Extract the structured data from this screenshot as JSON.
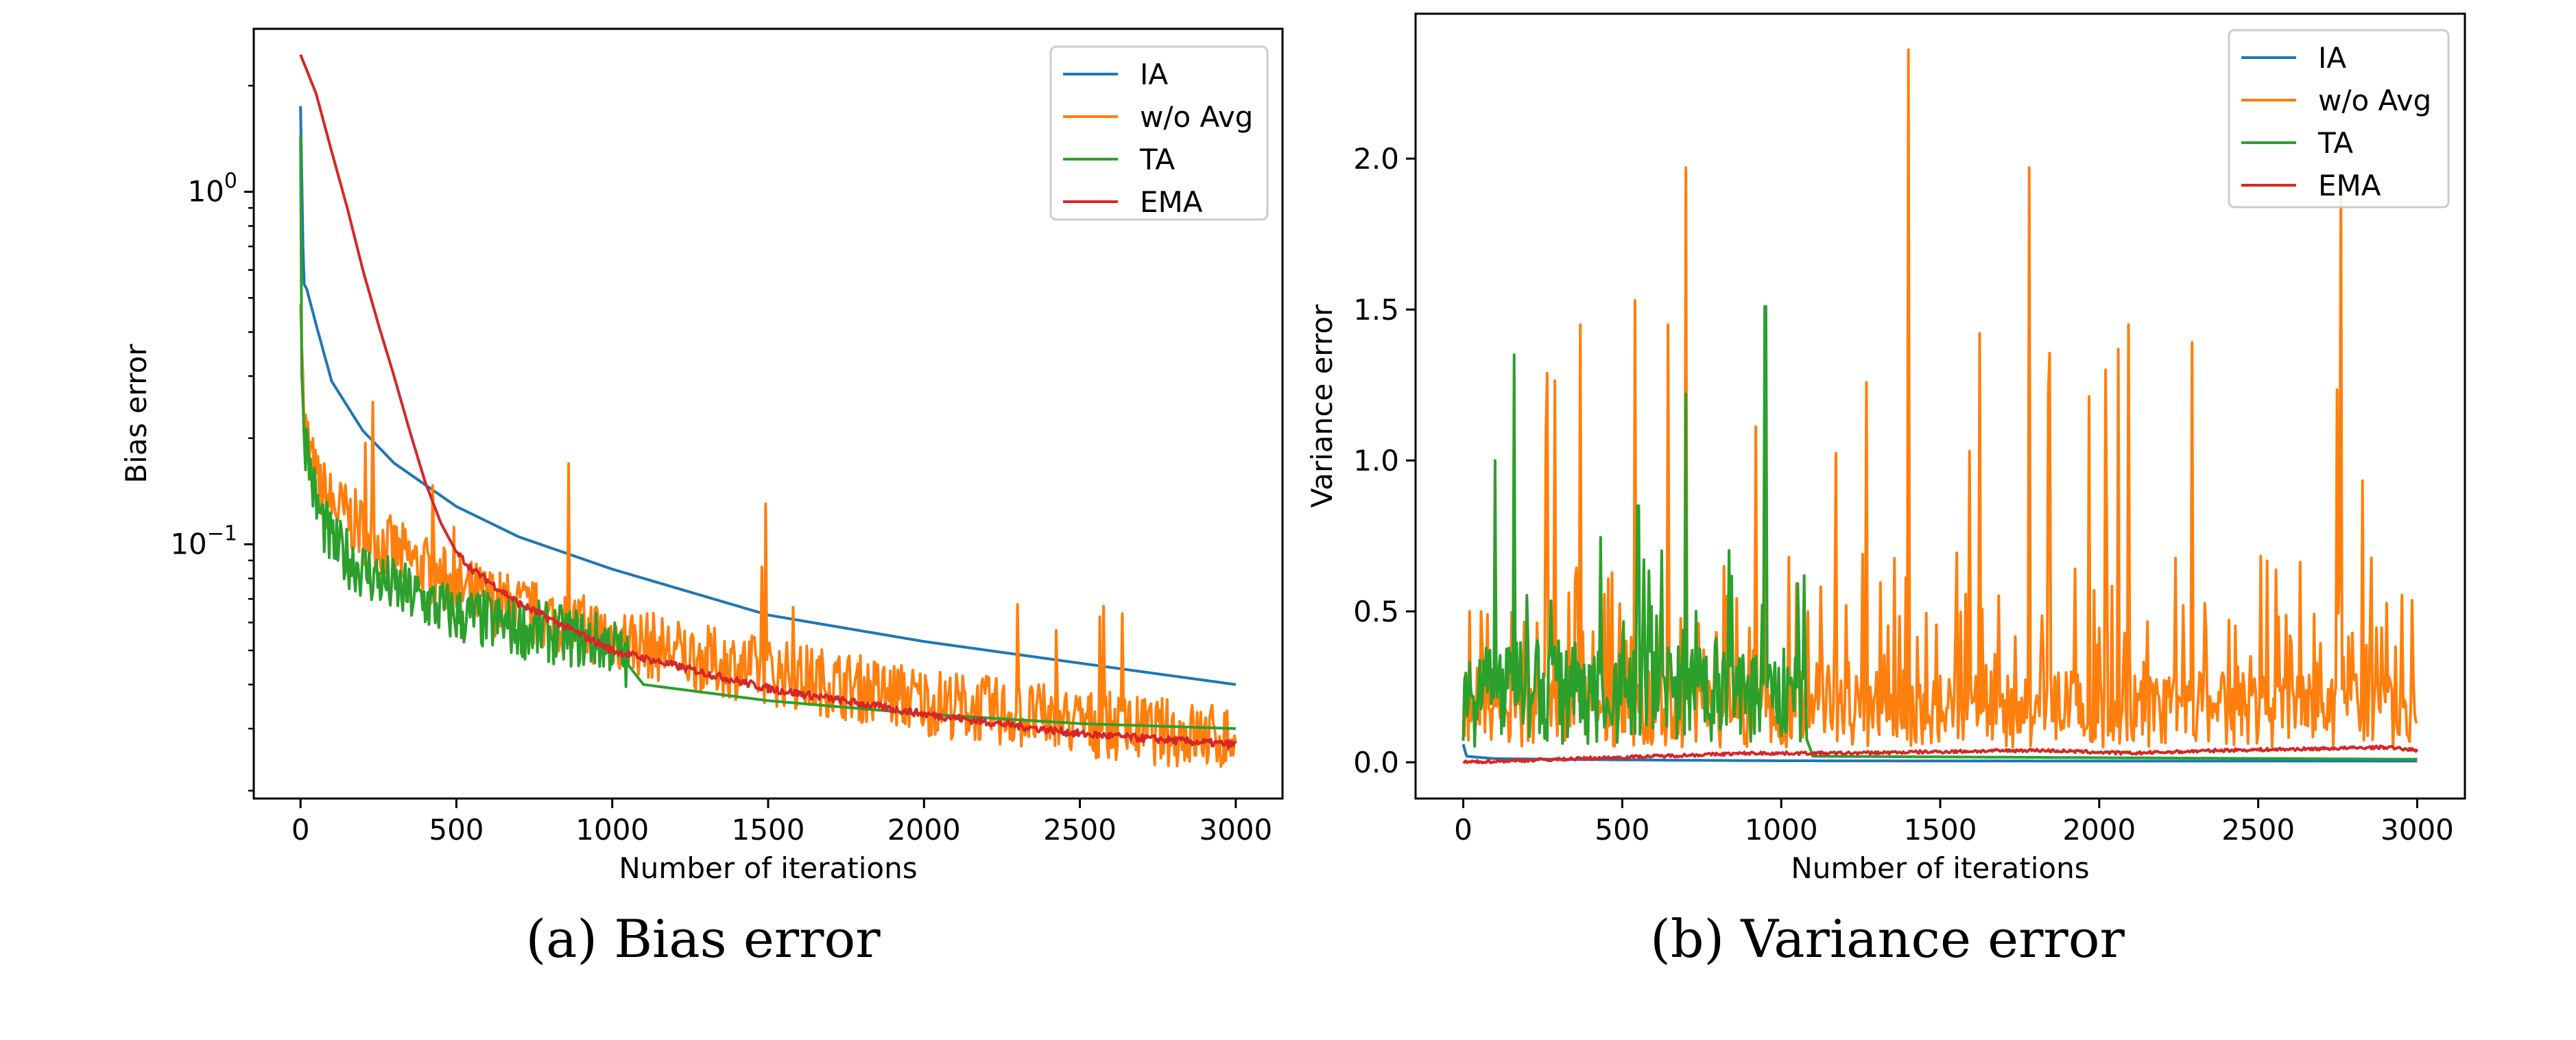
{
  "colors": {
    "IA": "#1f77b4",
    "w/o Avg": "#ff7f0e",
    "TA": "#2ca02c",
    "EMA": "#d62728"
  },
  "captions": {
    "a": "(a) Bias error",
    "b": "(b) Variance error"
  },
  "chart_data": [
    {
      "type": "line",
      "title": "",
      "xlabel": "Number of iterations",
      "ylabel": "Bias error",
      "yscale": "log",
      "xlim": [
        -150,
        3150
      ],
      "ylim": [
        0.019,
        2.9
      ],
      "xticks": [
        "0",
        "500",
        "1000",
        "1500",
        "2000",
        "2500",
        "3000"
      ],
      "yticks": [
        "10^0",
        "10^-1"
      ],
      "grid": false,
      "legend": "top-right",
      "series": [
        {
          "name": "IA",
          "x": [
            0,
            10,
            20,
            50,
            100,
            200,
            300,
            500,
            700,
            1000,
            1500,
            2000,
            2500,
            3000
          ],
          "y": [
            1.75,
            0.55,
            0.53,
            0.42,
            0.29,
            0.21,
            0.17,
            0.128,
            0.105,
            0.085,
            0.063,
            0.053,
            0.046,
            0.04
          ]
        },
        {
          "name": "w/o Avg",
          "x": [
            0,
            10,
            50,
            100,
            200,
            300,
            400,
            500,
            700,
            1000,
            1300,
            1600,
            2000,
            2500,
            3000
          ],
          "y": [
            0.6,
            0.22,
            0.15,
            0.13,
            0.11,
            0.095,
            0.085,
            0.075,
            0.065,
            0.055,
            0.047,
            0.042,
            0.036,
            0.031,
            0.028
          ]
        },
        {
          "name": "TA",
          "x": [
            0,
            5,
            15,
            50,
            100,
            200,
            300,
            500,
            700,
            1000,
            1100,
            1500,
            2000,
            2500,
            3000
          ],
          "y": [
            1.3,
            0.26,
            0.2,
            0.13,
            0.1,
            0.085,
            0.075,
            0.063,
            0.058,
            0.052,
            0.04,
            0.036,
            0.033,
            0.031,
            0.03
          ]
        },
        {
          "name": "EMA",
          "x": [
            0,
            50,
            100,
            150,
            200,
            250,
            300,
            350,
            400,
            450,
            500,
            550,
            700,
            1000,
            1500,
            2000,
            2500,
            3000
          ],
          "y": [
            2.45,
            1.9,
            1.3,
            0.9,
            0.6,
            0.42,
            0.3,
            0.21,
            0.15,
            0.115,
            0.095,
            0.085,
            0.068,
            0.05,
            0.039,
            0.033,
            0.029,
            0.027
          ]
        }
      ]
    },
    {
      "type": "line",
      "title": "",
      "xlabel": "Number of iterations",
      "ylabel": "Variance error",
      "yscale": "linear",
      "xlim": [
        -150,
        3150
      ],
      "ylim": [
        -0.12,
        2.48
      ],
      "xticks": [
        "0",
        "500",
        "1000",
        "1500",
        "2000",
        "2500",
        "3000"
      ],
      "yticks": [
        "0.0",
        "0.5",
        "1.0",
        "1.5",
        "2.0"
      ],
      "grid": false,
      "legend": "top-right",
      "series": [
        {
          "name": "IA",
          "x": [
            0,
            10,
            100,
            500,
            1000,
            2000,
            3000
          ],
          "y": [
            0.06,
            0.02,
            0.012,
            0.008,
            0.005,
            0.004,
            0.004
          ]
        },
        {
          "name": "w/o Avg",
          "x": [
            0,
            540,
            700,
            1100,
            1400,
            1580,
            1780,
            2020,
            2400,
            2760,
            3000
          ],
          "y": [
            0.2,
            1.53,
            1.97,
            0.2,
            2.36,
            0.25,
            1.97,
            1.3,
            0.2,
            1.95,
            0.3
          ],
          "noise_range": [
            0.02,
            0.75
          ]
        },
        {
          "name": "TA",
          "x": [
            0,
            100,
            160,
            550,
            700,
            950,
            1000,
            1100,
            3000
          ],
          "y": [
            0.15,
            1.0,
            1.35,
            0.85,
            1.22,
            1.51,
            0.3,
            0.02,
            0.01
          ]
        },
        {
          "name": "EMA",
          "x": [
            0,
            300,
            600,
            900,
            1200,
            1500,
            1800,
            2100,
            2400,
            2700,
            2900,
            3000
          ],
          "y": [
            0.0,
            0.01,
            0.02,
            0.03,
            0.03,
            0.035,
            0.04,
            0.03,
            0.04,
            0.045,
            0.05,
            0.04
          ]
        }
      ]
    }
  ]
}
